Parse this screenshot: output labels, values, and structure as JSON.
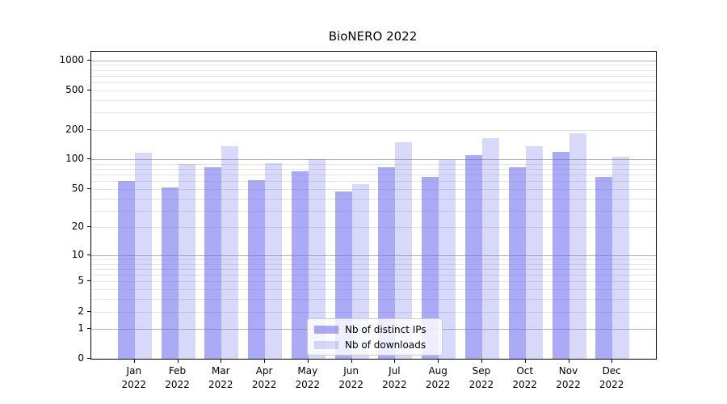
{
  "title": "BioNERO 2022",
  "chart_data": {
    "type": "bar",
    "title": "BioNERO 2022",
    "categories": [
      "Jan",
      "Feb",
      "Mar",
      "Apr",
      "May",
      "Jun",
      "Jul",
      "Aug",
      "Sep",
      "Oct",
      "Nov",
      "Dec"
    ],
    "category_year": "2022",
    "series": [
      {
        "name": "Nb of distinct IPs",
        "color": "rgba(104,104,240,0.56)",
        "values": [
          61,
          52,
          84,
          62,
          76,
          47,
          84,
          66,
          110,
          84,
          120,
          66
        ]
      },
      {
        "name": "Nb of downloads",
        "color": "rgba(104,104,240,0.26)",
        "values": [
          117,
          90,
          136,
          92,
          100,
          56,
          150,
          99,
          164,
          136,
          184,
          107
        ]
      }
    ],
    "yscale": "log1p",
    "yticks": [
      0,
      1,
      2,
      5,
      10,
      20,
      50,
      100,
      200,
      500,
      1000
    ],
    "ylim": [
      0,
      1200
    ],
    "xlabel": "",
    "ylabel": "",
    "grid": true,
    "legend_position": "lower center"
  },
  "colors": {
    "bar_dark": "rgba(104,104,240,0.56)",
    "bar_light": "rgba(104,104,240,0.26)",
    "grid_major": "#b0b0b0",
    "grid_minor": "#e5e5e5",
    "axis": "#000000",
    "legend_border": "#cccccc",
    "legend_bg": "rgba(255,255,255,0.8)"
  }
}
